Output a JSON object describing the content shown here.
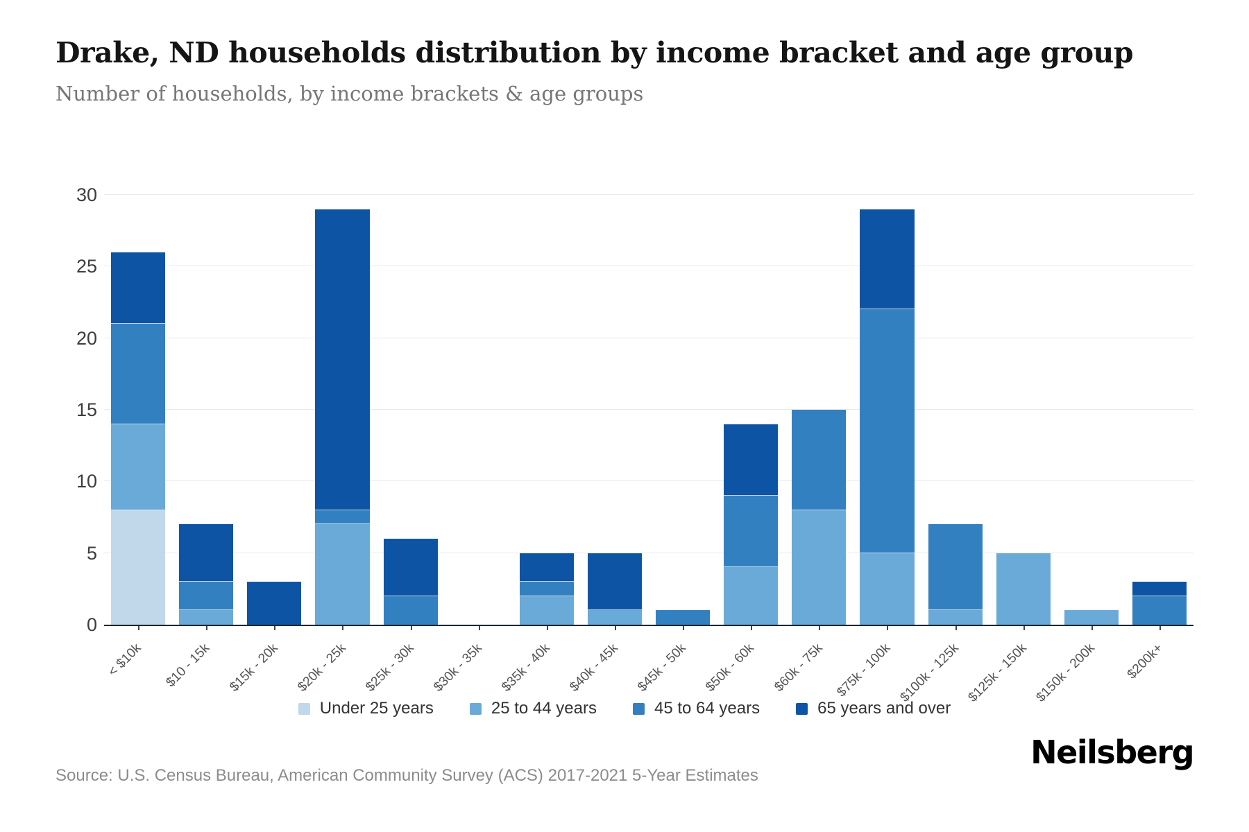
{
  "header": {
    "title": "Drake, ND households distribution by income bracket and age group",
    "subtitle": "Number of households, by income brackets & age groups"
  },
  "footer": {
    "source": "Source: U.S. Census Bureau, American Community Survey (ACS) 2017-2021 5-Year Estimates",
    "brand": "Neilsberg"
  },
  "chart_data": {
    "type": "bar",
    "stacked": true,
    "title": "Drake, ND households distribution by income bracket and age group",
    "subtitle": "Number of households, by income brackets & age groups",
    "xlabel": "",
    "ylabel": "",
    "ylim": [
      0,
      30
    ],
    "yticks": [
      0,
      5,
      10,
      15,
      20,
      25,
      30
    ],
    "grid": "horizontal",
    "legend_position": "bottom",
    "background_color": "#ffffff",
    "axis_color": "#1b2733",
    "grid_color": "#e9e9e9",
    "categories": [
      "< $10k",
      "$10 - 15k",
      "$15k - 20k",
      "$20k - 25k",
      "$25k - 30k",
      "$30k - 35k",
      "$35k - 40k",
      "$40k - 45k",
      "$45k - 50k",
      "$50k - 60k",
      "$60k - 75k",
      "$75k - 100k",
      "$100k - 125k",
      "$125k - 150k",
      "$150k - 200k",
      "$200k+"
    ],
    "series": [
      {
        "name": "Under 25 years",
        "color": "#c1d8ea",
        "values": [
          8,
          0,
          0,
          0,
          0,
          0,
          0,
          0,
          0,
          0,
          0,
          0,
          0,
          0,
          0,
          0
        ]
      },
      {
        "name": "25 to 44 years",
        "color": "#6aaad8",
        "values": [
          6,
          1,
          0,
          7,
          0,
          0,
          2,
          1,
          0,
          4,
          8,
          5,
          1,
          5,
          1,
          0
        ]
      },
      {
        "name": "45 to 64 years",
        "color": "#3380c0",
        "values": [
          7,
          2,
          0,
          1,
          2,
          0,
          1,
          0,
          1,
          5,
          7,
          17,
          6,
          0,
          0,
          2
        ]
      },
      {
        "name": "65 years and over",
        "color": "#0d55a4",
        "values": [
          5,
          4,
          3,
          21,
          4,
          0,
          2,
          4,
          0,
          5,
          0,
          7,
          0,
          0,
          0,
          1
        ]
      }
    ],
    "totals": [
      26,
      7,
      3,
      29,
      6,
      0,
      5,
      5,
      1,
      14,
      15,
      29,
      7,
      5,
      1,
      3
    ]
  }
}
